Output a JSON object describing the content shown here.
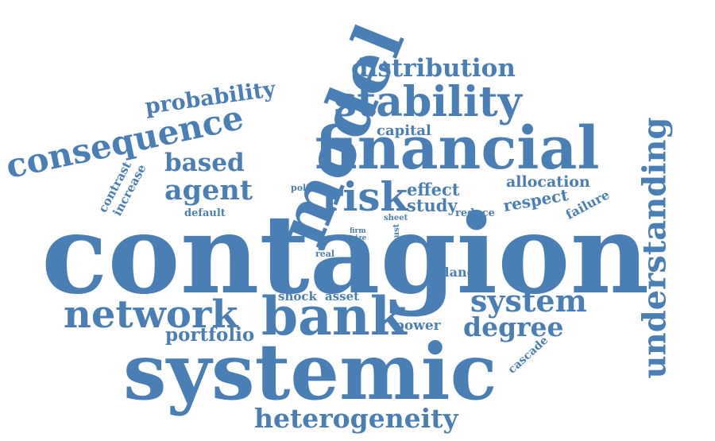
{
  "word_color": "#4a7fb5",
  "background_color": "#ffffff",
  "words": {
    "contagion": "contagion",
    "systemic": "systemic",
    "financial": "financial",
    "model": "model",
    "bank": "bank",
    "stability": "stability",
    "network": "network",
    "consequence": "consequence",
    "risk": "risk",
    "understanding": "understanding",
    "heterogeneity": "heterogeneity",
    "system": "system",
    "degree": "degree",
    "distribution": "distribution",
    "probability": "probability",
    "agent": "agent",
    "based": "based",
    "portfolio": "portfolio",
    "effect": "effect",
    "study": "study",
    "allocation": "allocation",
    "respect": "respect",
    "capital": "capital",
    "shock": "shock",
    "asset": "asset",
    "balance": "balance",
    "power": "power",
    "failure": "failure",
    "cascade": "cascade",
    "contrast": "contrast",
    "increase": "increase",
    "default": "default",
    "policy": "policy",
    "reduce": "reduce",
    "sheet": "sheet",
    "firm": "firm",
    "size": "size",
    "robust": "robust",
    "real": "real"
  }
}
